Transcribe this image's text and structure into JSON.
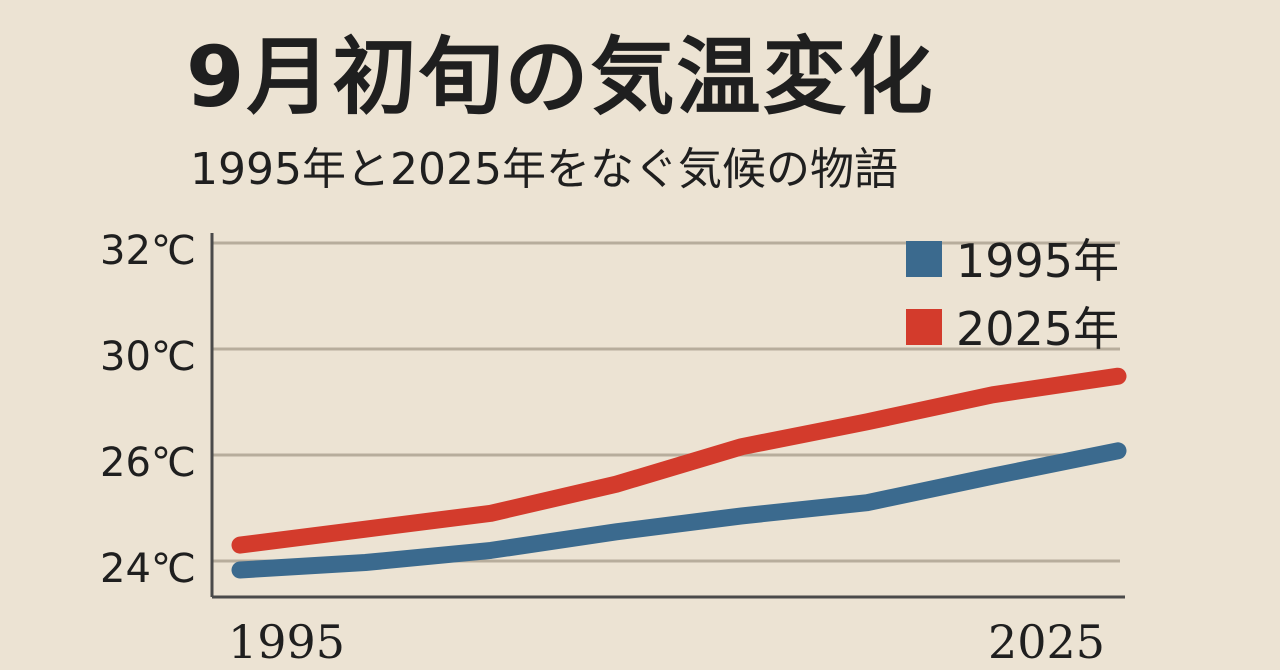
{
  "chart_data": {
    "type": "line",
    "title": "9月初旬の気温変化",
    "subtitle": "1995年と2025年をなぐ気候の物語",
    "x_tick_labels": [
      "1995",
      "2025"
    ],
    "y_tick_labels": [
      "32℃",
      "30℃",
      "26℃",
      "24℃"
    ],
    "legend": {
      "position": "top-right"
    },
    "grid": true,
    "series": [
      {
        "name": "1995年",
        "color": "#3b6a8e",
        "values": [
          23.7,
          23.95,
          24.2,
          24.55,
          24.85,
          25.1,
          25.6,
          26.1
        ]
      },
      {
        "name": "2025年",
        "color": "#d33b2c",
        "values": [
          24.3,
          24.6,
          24.9,
          25.45,
          26.2,
          26.8,
          27.45,
          27.9
        ]
      }
    ]
  }
}
